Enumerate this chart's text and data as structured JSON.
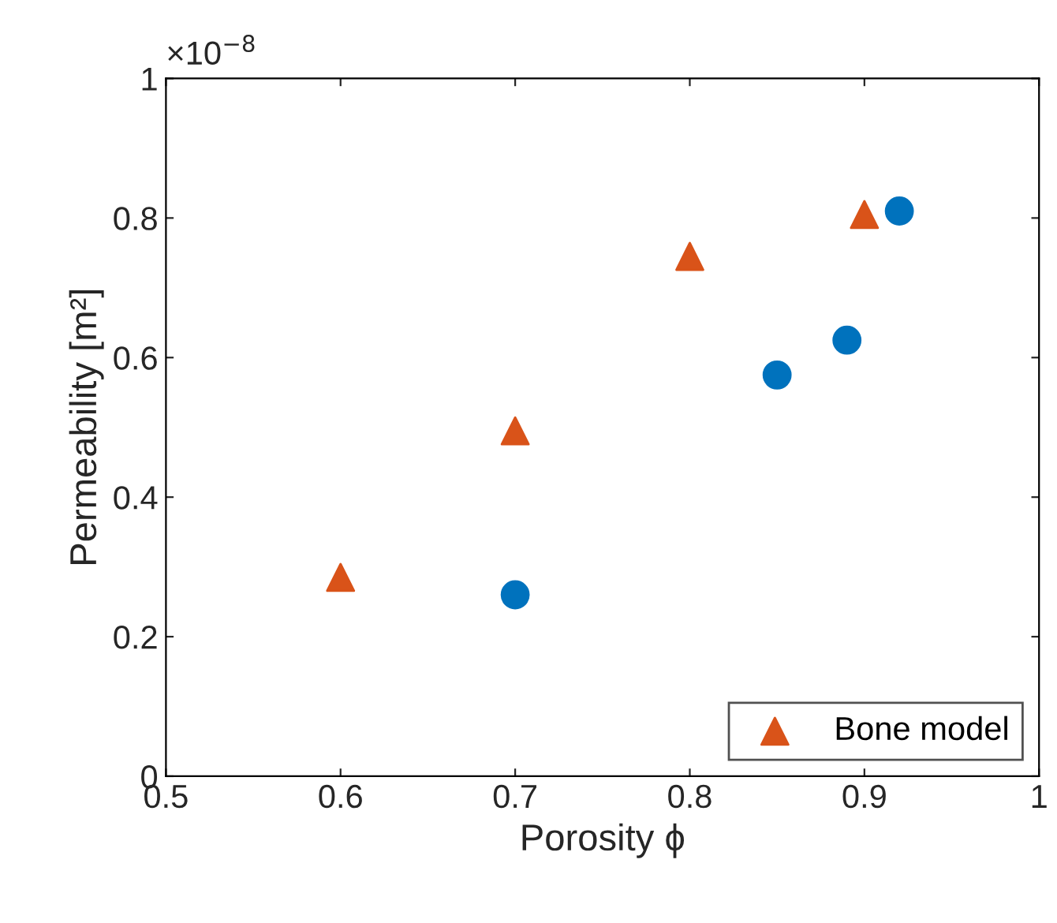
{
  "chart_data": {
    "type": "scatter",
    "xlabel": "Porosity ϕ",
    "ylabel": "Permeability [m²]",
    "annotations": [
      "×10$^{−8}$"
    ],
    "series": [
      {
        "color": "#0072bd",
        "marker": "circle",
        "x": [
          0.7,
          0.85,
          0.89,
          0.92
        ],
        "values": [
          0.26,
          0.575,
          0.625,
          0.81
        ]
      },
      {
        "name": "Bone model",
        "color": "#d95319",
        "marker": "triangle",
        "x": [
          0.6,
          0.7,
          0.8,
          0.9
        ],
        "values": [
          0.285,
          0.495,
          0.745,
          0.805
        ]
      }
    ],
    "xlim": [
      0.5,
      1
    ],
    "xticks": [
      0.5,
      0.6,
      0.7,
      0.8,
      0.9,
      1
    ],
    "ylim": [
      0,
      1
    ],
    "yticks": [
      0,
      0.2,
      0.4,
      0.6,
      0.8,
      1
    ],
    "grid": false,
    "legend": "bottom right"
  }
}
